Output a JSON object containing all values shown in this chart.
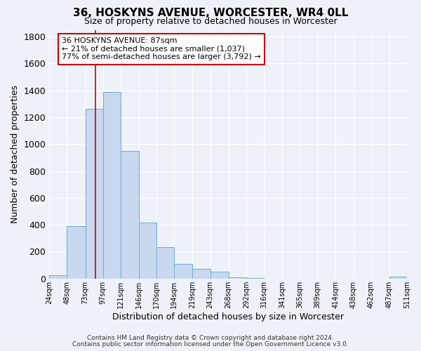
{
  "title": "36, HOSKYNS AVENUE, WORCESTER, WR4 0LL",
  "subtitle": "Size of property relative to detached houses in Worcester",
  "xlabel": "Distribution of detached houses by size in Worcester",
  "ylabel": "Number of detached properties",
  "bin_edges": [
    24,
    48,
    73,
    97,
    121,
    146,
    170,
    194,
    219,
    243,
    268,
    292,
    316,
    341,
    365,
    389,
    414,
    438,
    462,
    487,
    511
  ],
  "bar_heights": [
    25,
    390,
    1260,
    1390,
    950,
    415,
    235,
    110,
    70,
    50,
    10,
    5,
    0,
    0,
    0,
    0,
    0,
    0,
    0,
    15
  ],
  "bar_color": "#c8d8ee",
  "bar_edge_color": "#6baed6",
  "bg_color": "#eef2f8",
  "grid_color": "#ffffff",
  "vline_x": 87,
  "vline_color": "#cc0000",
  "annotation_text": "36 HOSKYNS AVENUE: 87sqm\n← 21% of detached houses are smaller (1,037)\n77% of semi-detached houses are larger (3,792) →",
  "annotation_box_edgecolor": "#cc0000",
  "annotation_box_facecolor": "#ffffff",
  "footer1": "Contains HM Land Registry data © Crown copyright and database right 2024.",
  "footer2": "Contains public sector information licensed under the Open Government Licence v3.0.",
  "ylim": [
    0,
    1850
  ],
  "yticks": [
    0,
    200,
    400,
    600,
    800,
    1000,
    1200,
    1400,
    1600,
    1800
  ],
  "tick_labels": [
    "24sqm",
    "48sqm",
    "73sqm",
    "97sqm",
    "121sqm",
    "146sqm",
    "170sqm",
    "194sqm",
    "219sqm",
    "243sqm",
    "268sqm",
    "292sqm",
    "316sqm",
    "341sqm",
    "365sqm",
    "389sqm",
    "414sqm",
    "438sqm",
    "462sqm",
    "487sqm",
    "511sqm"
  ]
}
